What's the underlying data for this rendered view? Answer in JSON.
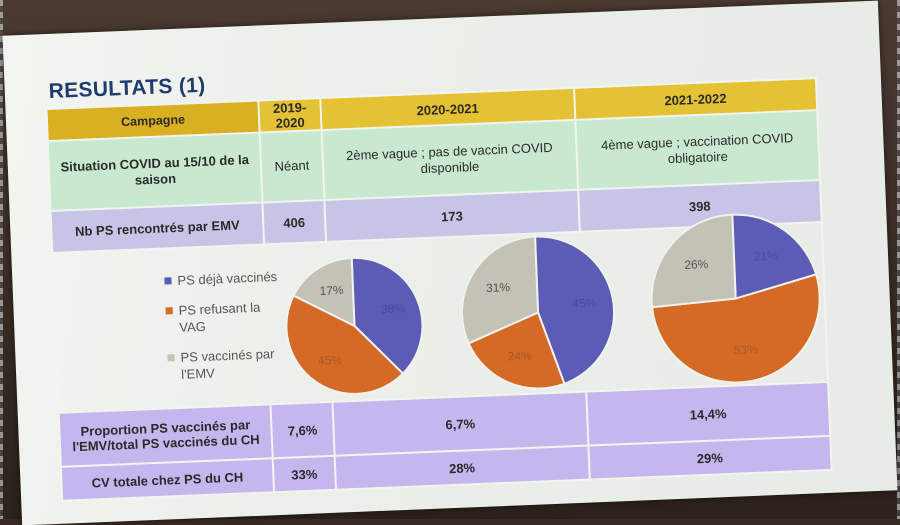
{
  "slide": {
    "title": "RESULTATS (1)"
  },
  "table": {
    "header_label": "Campagne",
    "years": [
      "2019-2020",
      "2020-2021",
      "2021-2022"
    ],
    "situation_label": "Situation COVID au 15/10 de la saison",
    "situation": [
      "Néant",
      "2ème vague ; pas de vaccin COVID disponible",
      "4ème vague ; vaccination COVID obligatoire"
    ],
    "nb_label": "Nb PS rencontrés par EMV",
    "nb": [
      "406",
      "173",
      "398"
    ],
    "proportion_label": "Proportion PS vaccinés par l'EMV/total PS vaccinés du CH",
    "proportion": [
      "7,6%",
      "6,7%",
      "14,4%"
    ],
    "cv_label": "CV totale chez PS du CH",
    "cv": [
      "33%",
      "28%",
      "29%"
    ]
  },
  "legend": [
    {
      "label": "PS déjà vaccinés",
      "color": "#5c5bb5"
    },
    {
      "label": "PS refusant la VAG",
      "color": "#d46a26"
    },
    {
      "label": "PS vaccinés par l'EMV",
      "color": "#c4c1b6"
    }
  ],
  "chart_data": [
    {
      "type": "pie",
      "categories": [
        "PS déjà vaccinés",
        "PS refusant la VAG",
        "PS vaccinés par l'EMV"
      ],
      "values": [
        38,
        45,
        17
      ],
      "labels": [
        "38%",
        "45%",
        "17%"
      ],
      "colors": [
        "#5c5bb5",
        "#d46a26",
        "#c4c1b6"
      ]
    },
    {
      "type": "pie",
      "categories": [
        "PS déjà vaccinés",
        "PS refusant la VAG",
        "PS vaccinés par l'EMV"
      ],
      "values": [
        45,
        24,
        31
      ],
      "labels": [
        "45%",
        "24%",
        "31%"
      ],
      "colors": [
        "#5c5bb5",
        "#d46a26",
        "#c4c1b6"
      ]
    },
    {
      "type": "pie",
      "categories": [
        "PS déjà vaccinés",
        "PS refusant la VAG",
        "PS vaccinés par l'EMV"
      ],
      "values": [
        21,
        53,
        26
      ],
      "labels": [
        "21%",
        "53%",
        "26%"
      ],
      "colors": [
        "#5c5bb5",
        "#d46a26",
        "#c4c1b6"
      ]
    }
  ]
}
